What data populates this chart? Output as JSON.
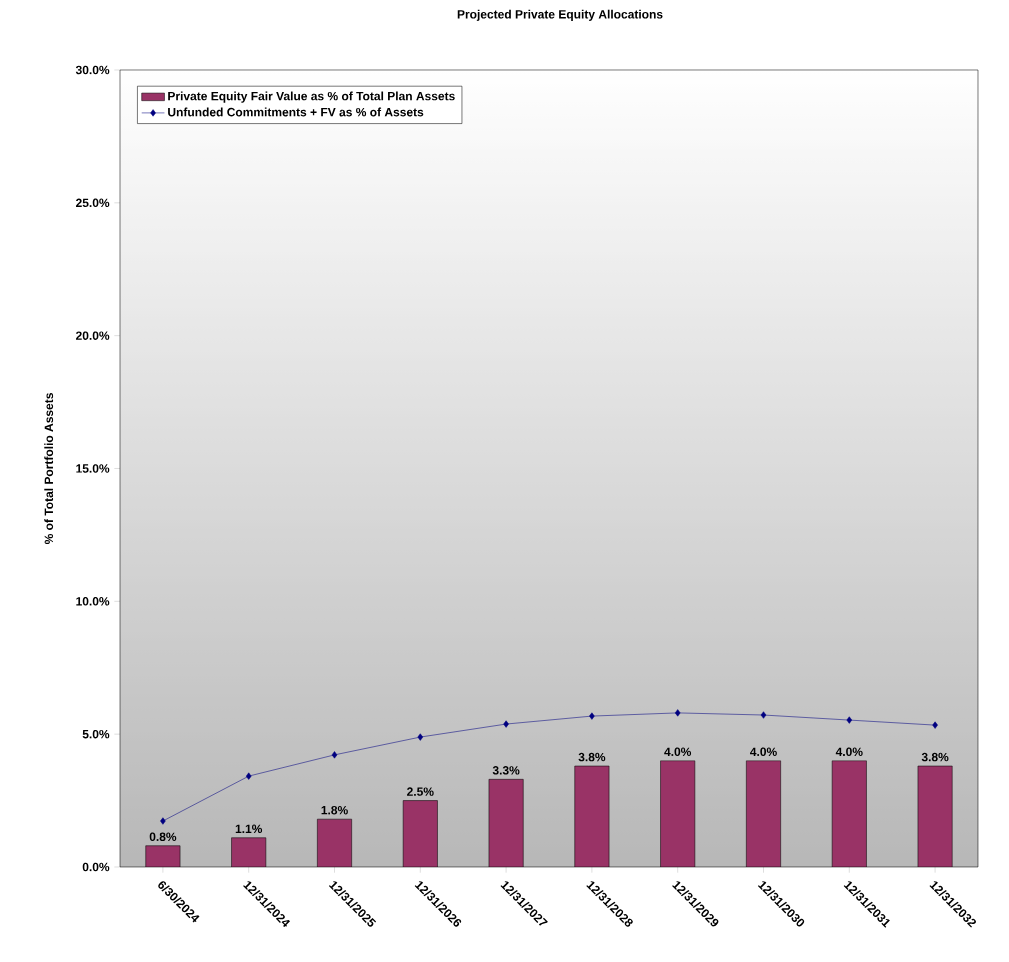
{
  "chart_data": {
    "type": "bar",
    "title": "Projected Private Equity Allocations",
    "ylabel": "% of Total Portfolio Assets",
    "categories": [
      "6/30/2024",
      "12/31/2024",
      "12/31/2025",
      "12/31/2026",
      "12/31/2027",
      "12/31/2028",
      "12/31/2029",
      "12/31/2030",
      "12/31/2031",
      "12/31/2032"
    ],
    "series": [
      {
        "name": "Private Equity Fair Value as % of Total Plan Assets",
        "color": "#993366",
        "values": [
          0.8,
          1.1,
          1.8,
          2.5,
          3.3,
          3.8,
          4.0,
          4.0,
          4.0,
          3.8
        ],
        "value_labels": [
          "0.8%",
          "1.1%",
          "1.8%",
          "2.5%",
          "3.3%",
          "3.8%",
          "4.0%",
          "4.0%",
          "4.0%",
          "3.8%"
        ]
      },
      {
        "name": "Unfunded Commitments + FV as % of Assets",
        "type": "line",
        "color": "#000080",
        "marker": "diamond",
        "values": [
          1.73,
          3.42,
          4.22,
          4.89,
          5.38,
          5.68,
          5.8,
          5.72,
          5.53,
          5.34
        ]
      }
    ],
    "ylim": [
      0,
      30
    ],
    "yticks": [
      {
        "value": 0,
        "label": "0.0%"
      },
      {
        "value": 5,
        "label": "5.0%"
      },
      {
        "value": 10,
        "label": "10.0%"
      },
      {
        "value": 15,
        "label": "15.0%"
      },
      {
        "value": 20,
        "label": "20.0%"
      },
      {
        "value": 25,
        "label": "25.0%"
      },
      {
        "value": 30,
        "label": "30.0%"
      }
    ],
    "legend": "top left",
    "grid": false
  }
}
